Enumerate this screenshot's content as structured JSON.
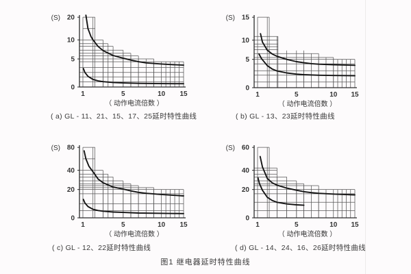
{
  "page": {
    "figure_title": "图1 继电器延时特性曲线"
  },
  "chart_data": [
    {
      "id": "a",
      "type": "line",
      "caption": "( a) GL - 11、21、15、17、25延时特性曲线",
      "ylabel": "(S)",
      "xlabel": "（ 动作电流倍数 ）",
      "xlim": [
        1,
        15
      ],
      "ylim": [
        0,
        21
      ],
      "x_ticks": [
        1,
        5,
        10,
        15
      ],
      "y_ticks": [
        0,
        5,
        10,
        20
      ],
      "grid": "clipped-to-tolerance-band",
      "legend": "none",
      "tolerance_steps": [
        {
          "x_end": 2.2,
          "top": 20
        },
        {
          "x_end": 3,
          "top": 10
        },
        {
          "x_end": 3.5,
          "top": 9
        },
        {
          "x_end": 4,
          "top": 8.3
        },
        {
          "x_end": 5,
          "top": 7.3
        },
        {
          "x_end": 6,
          "top": 6.5
        },
        {
          "x_end": 7,
          "top": 5.8
        },
        {
          "x_end": 9,
          "top": 5
        },
        {
          "x_end": 15,
          "top": 4.5
        }
      ],
      "grid_y_values": [
        20,
        15,
        10,
        9,
        8.3,
        7.3,
        6.5,
        5.8,
        5,
        4.5,
        3.5,
        2.6,
        1.8,
        0.9
      ],
      "series": [
        {
          "name": "upper-limit-curve",
          "points": [
            [
              1.3,
              20.9
            ],
            [
              1.5,
              15
            ],
            [
              1.8,
              11.5
            ],
            [
              2,
              10
            ],
            [
              2.5,
              8.3
            ],
            [
              3,
              7.2
            ],
            [
              4,
              5.9
            ],
            [
              5,
              5.2
            ],
            [
              6,
              4.8
            ],
            [
              7,
              4.5
            ],
            [
              8,
              4.3
            ],
            [
              10,
              4.1
            ],
            [
              12,
              4.0
            ],
            [
              15,
              3.9
            ]
          ]
        },
        {
          "name": "lower-limit-curve",
          "points": [
            [
              1.05,
              3.3
            ],
            [
              1.2,
              2.6
            ],
            [
              1.5,
              1.9
            ],
            [
              2,
              1.35
            ],
            [
              2.5,
              1.1
            ],
            [
              3,
              0.95
            ],
            [
              4,
              0.8
            ],
            [
              5,
              0.72
            ],
            [
              7,
              0.65
            ],
            [
              10,
              0.6
            ],
            [
              15,
              0.58
            ]
          ]
        }
      ]
    },
    {
      "id": "b",
      "type": "line",
      "caption": "( b) GL - 13、23延时特性曲线",
      "ylabel": "(S)",
      "xlabel": "（ 动作电流倍数 ）",
      "xlim": [
        1,
        15
      ],
      "ylim": [
        0,
        15.5
      ],
      "x_ticks": [
        1,
        5,
        10,
        15
      ],
      "y_ticks": [
        0,
        5,
        10,
        15
      ],
      "grid": "clipped-to-tolerance-band",
      "legend": "none",
      "tolerance_steps": [
        {
          "x_end": 2.2,
          "top": 15
        },
        {
          "x_end": 3.1,
          "top": 10.8
        },
        {
          "x_end": 6,
          "top": 7.3
        },
        {
          "x_end": 8,
          "top": 6.5
        },
        {
          "x_end": 10,
          "top": 5.5
        },
        {
          "x_end": 15,
          "top": 5
        }
      ],
      "grid_y_values": [
        15,
        10.8,
        10,
        9,
        8.3,
        7.5,
        6.5,
        5.5,
        5,
        4.2,
        3,
        2.2,
        1
      ],
      "series": [
        {
          "name": "upper-limit-curve",
          "points": [
            [
              1.3,
              11.4
            ],
            [
              1.5,
              9.5
            ],
            [
              2,
              7.4
            ],
            [
              2.5,
              6.4
            ],
            [
              3,
              5.8
            ],
            [
              4,
              5.0
            ],
            [
              5,
              4.6
            ],
            [
              6,
              4.4
            ],
            [
              7,
              4.25
            ],
            [
              8,
              4.15
            ],
            [
              10,
              4.05
            ],
            [
              15,
              3.95
            ]
          ]
        },
        {
          "name": "lower-limit-curve",
          "points": [
            [
              1.15,
              6.4
            ],
            [
              1.4,
              5.2
            ],
            [
              2,
              3.9
            ],
            [
              2.5,
              3.3
            ],
            [
              3,
              2.95
            ],
            [
              4,
              2.6
            ],
            [
              5,
              2.4
            ],
            [
              6,
              2.3
            ],
            [
              8,
              2.2
            ],
            [
              10,
              2.15
            ],
            [
              15,
              2.1
            ]
          ]
        }
      ]
    },
    {
      "id": "c",
      "type": "line",
      "caption": "( c) GL - 12、22延时特性曲线",
      "ylabel": "(S)",
      "xlabel": "（ 动作电流倍数 ）",
      "xlim": [
        1,
        15
      ],
      "ylim": [
        0,
        84
      ],
      "x_ticks": [
        1,
        5,
        10,
        15
      ],
      "y_ticks": [
        0,
        20,
        40,
        80
      ],
      "grid": "clipped-to-tolerance-band",
      "legend": "none",
      "tolerance_steps": [
        {
          "x_end": 2.2,
          "top": 80
        },
        {
          "x_end": 3,
          "top": 40
        },
        {
          "x_end": 3.5,
          "top": 36
        },
        {
          "x_end": 4,
          "top": 33
        },
        {
          "x_end": 5,
          "top": 29
        },
        {
          "x_end": 6,
          "top": 26
        },
        {
          "x_end": 7,
          "top": 24
        },
        {
          "x_end": 9,
          "top": 22
        },
        {
          "x_end": 15,
          "top": 20
        }
      ],
      "grid_y_values": [
        80,
        60,
        40,
        36,
        33,
        29,
        26,
        24,
        22,
        20,
        17,
        10,
        5
      ],
      "series": [
        {
          "name": "upper-limit-curve",
          "points": [
            [
              1.12,
              74
            ],
            [
              1.3,
              60
            ],
            [
              1.6,
              47
            ],
            [
              2,
              38.5
            ],
            [
              2.5,
              31
            ],
            [
              3,
              27
            ],
            [
              4,
              22.5
            ],
            [
              5,
              20.5
            ],
            [
              6,
              19
            ],
            [
              7,
              18
            ],
            [
              8,
              17.3
            ],
            [
              10,
              16.5
            ],
            [
              15,
              15.5
            ]
          ]
        },
        {
          "name": "lower-limit-curve",
          "points": [
            [
              1.05,
              13
            ],
            [
              1.2,
              10.5
            ],
            [
              1.5,
              8
            ],
            [
              2,
              6
            ],
            [
              2.5,
              5.2
            ],
            [
              3,
              4.7
            ],
            [
              4,
              4.1
            ],
            [
              5,
              3.8
            ],
            [
              7,
              3.4
            ],
            [
              10,
              3.2
            ],
            [
              15,
              3
            ]
          ]
        }
      ]
    },
    {
      "id": "d",
      "type": "line",
      "caption": "( d) GL - 14、24、16、26延时特性曲线",
      "ylabel": "(S)",
      "xlabel": "（ 动作电流倍数 ）",
      "xlim": [
        1,
        15
      ],
      "ylim": [
        0,
        63
      ],
      "x_ticks": [
        1,
        5,
        10,
        15
      ],
      "y_ticks": [
        0,
        20,
        40,
        60
      ],
      "grid": "clipped-to-tolerance-band",
      "legend": "none",
      "tolerance_steps": [
        {
          "x_end": 2.2,
          "top": 60
        },
        {
          "x_end": 3,
          "top": 42
        },
        {
          "x_end": 4,
          "top": 33
        },
        {
          "x_end": 5,
          "top": 29
        },
        {
          "x_end": 6,
          "top": 26
        },
        {
          "x_end": 8,
          "top": 24
        },
        {
          "x_end": 15,
          "top": 20
        }
      ],
      "grid_y_values": [
        60,
        42,
        40,
        36,
        33,
        29,
        26,
        24,
        20,
        17,
        11,
        5
      ],
      "series": [
        {
          "name": "upper-limit-curve",
          "points": [
            [
              1.27,
              52
            ],
            [
              1.5,
              43
            ],
            [
              2,
              31.5
            ],
            [
              2.5,
              27
            ],
            [
              3,
              24.5
            ],
            [
              4,
              21.5
            ],
            [
              5,
              19.5
            ],
            [
              6,
              18.5
            ],
            [
              7,
              17.8
            ],
            [
              8,
              17.3
            ],
            [
              10,
              16.8
            ],
            [
              15,
              16.2
            ]
          ]
        },
        {
          "name": "lower-limit-curve",
          "points": [
            [
              1.05,
              32
            ],
            [
              1.2,
              26
            ],
            [
              1.5,
              19.5
            ],
            [
              2,
              14.5
            ],
            [
              2.5,
              12.3
            ],
            [
              3,
              11
            ],
            [
              4,
              9.8
            ],
            [
              5,
              9.2
            ],
            [
              6,
              8.9
            ]
          ]
        }
      ]
    }
  ]
}
